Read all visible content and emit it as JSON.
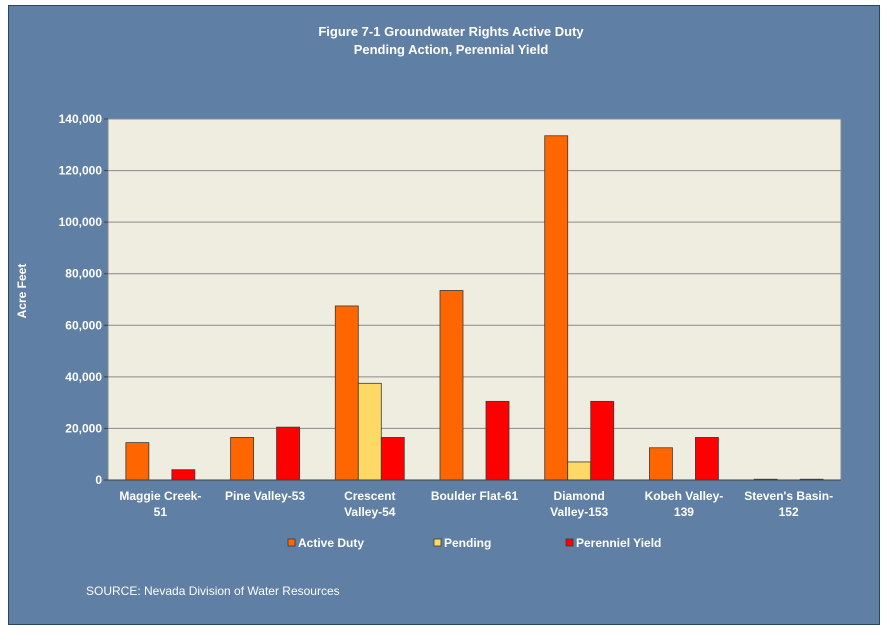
{
  "chart_data": {
    "type": "bar",
    "title_line1": "Figure  7-1 Groundwater Rights Active Duty",
    "title_line2": "Pending Action, Perennial Yield",
    "ylabel": "Acre Feet",
    "xlabel": "",
    "ylim": [
      0,
      140000
    ],
    "yticks": [
      0,
      20000,
      40000,
      60000,
      80000,
      100000,
      120000,
      140000
    ],
    "ytick_labels": [
      "0",
      "20,000",
      "40,000",
      "60,000",
      "80,000",
      "100,000",
      "120,000",
      "140,000"
    ],
    "grid": true,
    "legend_position": "bottom",
    "categories": [
      [
        "Maggie Creek-",
        "51"
      ],
      [
        "Pine Valley-53"
      ],
      [
        "Crescent",
        "Valley-54"
      ],
      [
        "Boulder Flat-61"
      ],
      [
        "Diamond",
        "Valley-153"
      ],
      [
        "Kobeh Valley-",
        "139"
      ],
      [
        "Steven's Basin-",
        "152"
      ]
    ],
    "series": [
      {
        "name": "Active Duty",
        "color": "#ff6600",
        "values": [
          14500,
          16500,
          67500,
          73500,
          133500,
          12500,
          300
        ]
      },
      {
        "name": "Pending",
        "color": "#ffd966",
        "values": [
          0,
          0,
          37500,
          0,
          7000,
          0,
          0
        ]
      },
      {
        "name": "Perenniel Yield",
        "color": "#ff0000",
        "values": [
          4000,
          20500,
          16500,
          30500,
          30500,
          16500,
          300
        ]
      }
    ]
  },
  "source_note": "SOURCE: Nevada Division of Water Resources",
  "colors": {
    "frame_background": "#5f7fa4",
    "plot_background": "#efece0",
    "text": "#ffffff"
  }
}
